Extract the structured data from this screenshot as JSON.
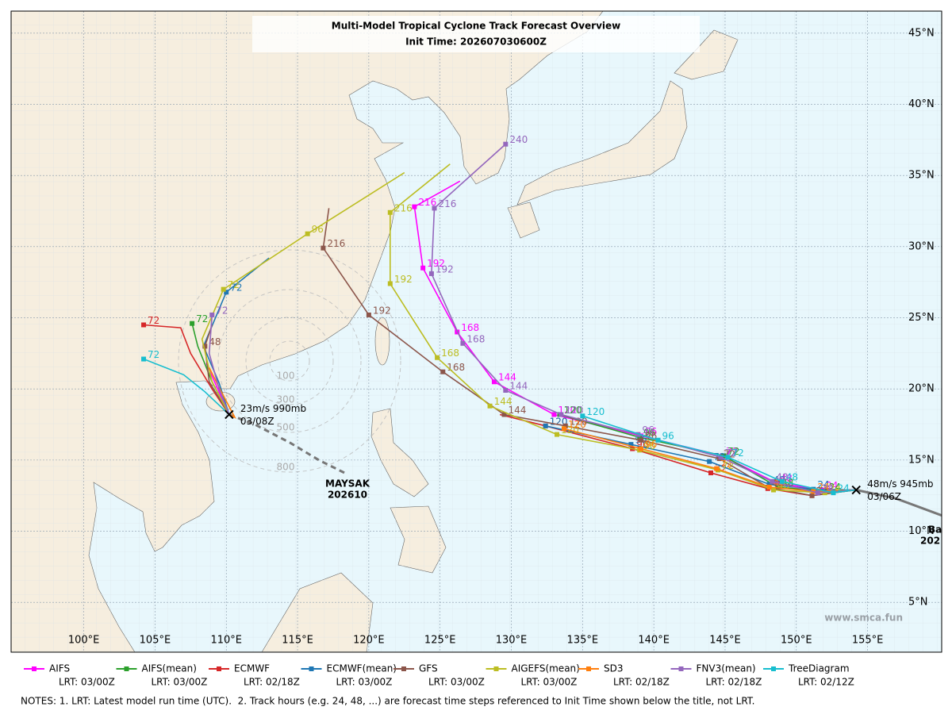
{
  "map": {
    "title": "Multi-Model Tropical Cyclone Track Forecast Overview",
    "subtitle": "Init Time: 202607030600Z",
    "xlim": [
      94.9,
      160.2
    ],
    "ylim": [
      1.5,
      46.55
    ],
    "xticks": [
      {
        "value": 100,
        "label": "100°E"
      },
      {
        "value": 105,
        "label": "105°E"
      },
      {
        "value": 110,
        "label": "110°E"
      },
      {
        "value": 115,
        "label": "115°E"
      },
      {
        "value": 120,
        "label": "120°E"
      },
      {
        "value": 125,
        "label": "125°E"
      },
      {
        "value": 130,
        "label": "130°E"
      },
      {
        "value": 135,
        "label": "135°E"
      },
      {
        "value": 140,
        "label": "140°E"
      },
      {
        "value": 145,
        "label": "145°E"
      },
      {
        "value": 150,
        "label": "150°E"
      },
      {
        "value": 155,
        "label": "155°E"
      }
    ],
    "yticks": [
      {
        "value": 5,
        "label": "5°N"
      },
      {
        "value": 10,
        "label": "10°N"
      },
      {
        "value": 15,
        "label": "15°N"
      },
      {
        "value": 20,
        "label": "20°N"
      },
      {
        "value": 25,
        "label": "25°N"
      },
      {
        "value": 30,
        "label": "30°N"
      },
      {
        "value": 35,
        "label": "35°N"
      },
      {
        "value": 40,
        "label": "40°N"
      },
      {
        "value": 45,
        "label": "45°N"
      }
    ],
    "models": [
      {
        "name": "AIFS",
        "color": "#ff00ff",
        "lrt": "LRT: 03/00Z",
        "tracks": [
          {
            "lon": [
              154.2,
              151.8,
              148.6,
              144.8,
              139.1,
              133.0,
              128.8,
              126.2,
              123.8,
              123.2,
              126.4
            ],
            "lat": [
              12.9,
              12.9,
              13.4,
              15.3,
              16.7,
              18.2,
              20.5,
              24.0,
              28.5,
              32.8,
              34.6
            ],
            "hours": [
              null,
              24,
              48,
              72,
              96,
              120,
              144,
              168,
              192,
              216,
              null
            ]
          },
          {
            "lon": [
              110.2,
              109.4,
              108.6
            ],
            "lat": [
              18.2,
              20.0,
              21.8
            ],
            "hours": [
              null,
              null,
              null
            ]
          }
        ]
      },
      {
        "name": "AIFS(mean)",
        "color": "#2ca02c",
        "lrt": "LRT: 03/00Z",
        "tracks": [
          {
            "lon": [
              154.2,
              152.0,
              148.7,
              144.9,
              139.0,
              133.4
            ],
            "lat": [
              12.9,
              12.8,
              13.1,
              15.3,
              16.6,
              18.2
            ],
            "hours": [
              null,
              24,
              48,
              72,
              96,
              120
            ]
          },
          {
            "lon": [
              110.2,
              109.0,
              108.0,
              107.6
            ],
            "lat": [
              18.2,
              20.5,
              23.0,
              24.6
            ],
            "hours": [
              null,
              null,
              null,
              72
            ]
          }
        ]
      },
      {
        "name": "ECMWF",
        "color": "#d62728",
        "lrt": "LRT: 02/18Z",
        "tracks": [
          {
            "lon": [
              154.2,
              151.1,
              148.0,
              144.0,
              138.5,
              132.4,
              129.2
            ],
            "lat": [
              12.9,
              12.5,
              13.0,
              14.1,
              15.8,
              17.4,
              18.2
            ],
            "hours": [
              null,
              24,
              48,
              72,
              96,
              120,
              null
            ]
          },
          {
            "lon": [
              110.2,
              109.0,
              107.5,
              106.8,
              104.2
            ],
            "lat": [
              18.2,
              20.0,
              22.5,
              24.3,
              24.5
            ],
            "hours": [
              null,
              null,
              null,
              null,
              72
            ]
          }
        ]
      },
      {
        "name": "ECMWF(mean)",
        "color": "#1f77b4",
        "lrt": "LRT: 03/00Z",
        "tracks": [
          {
            "lon": [
              154.2,
              151.2,
              148.1,
              143.9,
              138.4,
              132.4
            ],
            "lat": [
              12.9,
              12.95,
              13.3,
              14.9,
              16.1,
              17.4
            ],
            "hours": [
              null,
              24,
              48,
              72,
              96,
              120
            ]
          },
          {
            "lon": [
              110.2,
              109.5,
              108.4,
              110.0,
              113.0
            ],
            "lat": [
              18.2,
              20.4,
              23.0,
              26.8,
              29.2
            ],
            "hours": [
              null,
              null,
              null,
              72,
              null
            ]
          }
        ]
      },
      {
        "name": "GFS",
        "color": "#8c564b",
        "lrt": "LRT: 03/00Z",
        "tracks": [
          {
            "lon": [
              154.2,
              151.1,
              148.0,
              144.6,
              139.1,
              133.8,
              129.5,
              125.2,
              120.0,
              116.8,
              117.2
            ],
            "lat": [
              12.9,
              12.5,
              13.1,
              15.1,
              16.4,
              17.4,
              18.2,
              21.2,
              25.2,
              29.9,
              32.7
            ],
            "hours": [
              null,
              24,
              48,
              72,
              96,
              120,
              144,
              168,
              192,
              216,
              null
            ]
          },
          {
            "lon": [
              110.2,
              108.8,
              108.5,
              109.0
            ],
            "lat": [
              18.2,
              20.5,
              23.0,
              24.5
            ],
            "hours": [
              null,
              null,
              48,
              null
            ]
          }
        ]
      },
      {
        "name": "AIGEFS(mean)",
        "color": "#bcbd22",
        "lrt": "LRT: 03/00Z",
        "tracks": [
          {
            "lon": [
              154.2,
              152.0,
              148.4,
              144.5,
              139.0,
              133.2,
              128.5,
              124.8,
              121.5,
              121.5,
              125.7
            ],
            "lat": [
              12.9,
              12.7,
              12.9,
              14.3,
              15.7,
              16.8,
              18.8,
              22.2,
              27.4,
              32.4,
              35.8
            ],
            "hours": [
              null,
              24,
              48,
              72,
              96,
              120,
              144,
              168,
              192,
              216,
              null
            ]
          },
          {
            "lon": [
              110.2,
              109.0,
              108.3,
              109.8,
              115.7,
              122.5
            ],
            "lat": [
              18.2,
              20.5,
              23.5,
              27.0,
              30.9,
              35.2
            ],
            "hours": [
              null,
              null,
              null,
              72,
              96,
              null
            ]
          }
        ]
      },
      {
        "name": "SD3",
        "color": "#ff7f0e",
        "lrt": "LRT: 02/18Z",
        "tracks": [
          {
            "lon": [
              154.2,
              151.2,
              148.1,
              144.4,
              139.1,
              133.7
            ],
            "lat": [
              12.9,
              12.8,
              13.1,
              14.4,
              15.8,
              17.2
            ],
            "hours": [
              null,
              24,
              48,
              72,
              96,
              120
            ]
          },
          {
            "lon": [
              110.2,
              110.6,
              109.6,
              108.8
            ],
            "lat": [
              18.2,
              18.0,
              19.9,
              21.5
            ],
            "hours": [
              null,
              null,
              null,
              null
            ]
          }
        ]
      },
      {
        "name": "FNV3(mean)",
        "color": "#9467bd",
        "lrt": "LRT: 02/18Z",
        "tracks": [
          {
            "lon": [
              154.2,
              151.5,
              148.3,
              144.7,
              138.9,
              133.5,
              129.6,
              126.6,
              124.4,
              124.6,
              129.6
            ],
            "lat": [
              12.9,
              12.7,
              13.5,
              15.2,
              16.8,
              18.2,
              19.9,
              23.2,
              28.1,
              32.7,
              37.2
            ],
            "hours": [
              null,
              24,
              48,
              72,
              96,
              120,
              144,
              168,
              192,
              216,
              240
            ]
          },
          {
            "lon": [
              110.2,
              109.5,
              108.8,
              109.0
            ],
            "lat": [
              18.2,
              20.0,
              22.5,
              25.2
            ],
            "hours": [
              null,
              null,
              null,
              72
            ]
          }
        ]
      },
      {
        "name": "TreeDiagram",
        "color": "#17becf",
        "lrt": "LRT: 02/12Z",
        "tracks": [
          {
            "lon": [
              154.2,
              152.6,
              149.0,
              145.2,
              140.3,
              135.0
            ],
            "lat": [
              12.9,
              12.7,
              13.5,
              15.2,
              16.4,
              18.1
            ],
            "hours": [
              null,
              24,
              48,
              72,
              96,
              120
            ]
          },
          {
            "lon": [
              110.2,
              108.5,
              107.0,
              104.2
            ],
            "lat": [
              18.2,
              19.8,
              21.0,
              22.1
            ],
            "hours": [
              null,
              null,
              null,
              72
            ]
          }
        ]
      }
    ],
    "storms": [
      {
        "name": "MAYSAK",
        "id": "202610",
        "lon": 110.2,
        "lat": 18.2,
        "intensity": "23m/s 990mb",
        "time": "03/08Z",
        "past_lon": [
          110.2,
          112.0,
          114.5,
          116.5,
          118.3
        ],
        "past_lat": [
          18.2,
          17.5,
          16.2,
          15.0,
          14.1
        ]
      },
      {
        "lon": 154.2,
        "lat": 12.9,
        "intensity": "48m/s 945mb",
        "time": "03/06Z",
        "past_lon": [
          154.2,
          157.0,
          160.5
        ],
        "past_lat": [
          12.9,
          12.3,
          11.0
        ]
      }
    ],
    "offscreen_storm": {
      "name": "Ba",
      "id": "202"
    },
    "range_rings": [
      100,
      300,
      500,
      800
    ],
    "watermark": "www.smca.fun",
    "notes": "NOTES: 1. LRT: Latest model run time (UTC).  2. Track hours (e.g. 24, 48, ...) are forecast time steps referenced to Init Time shown below the title, not LRT."
  }
}
